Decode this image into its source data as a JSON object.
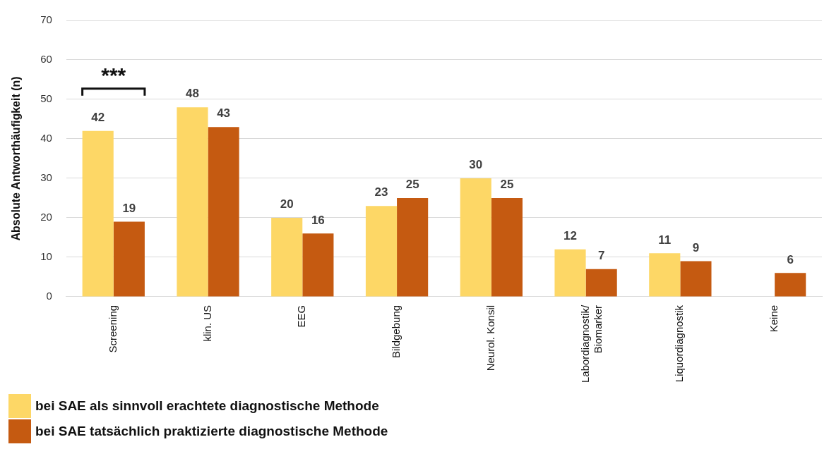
{
  "chart_data": {
    "type": "bar",
    "ylabel": "Absolute Antworthäufigkeit (n)",
    "categories": [
      "Screening",
      "klin. US",
      "EEG",
      "Bildgebung",
      "Neurol. Konsil",
      "Labordiagnostik/ Biomarker",
      "Liquordiagnostik",
      "Keine"
    ],
    "series": [
      {
        "name": "bei SAE als sinnvoll erachtete diagnostische Methode",
        "color": "#fdd766",
        "values": [
          42,
          48,
          20,
          23,
          30,
          12,
          11,
          null
        ]
      },
      {
        "name": "bei SAE tatsächlich praktizierte diagnostische Methode",
        "color": "#c55a11",
        "values": [
          19,
          43,
          16,
          25,
          25,
          7,
          9,
          6
        ]
      }
    ],
    "ylim": [
      0,
      70
    ],
    "yticks": [
      0,
      10,
      20,
      30,
      40,
      50,
      60,
      70
    ],
    "grid": "y",
    "legend": "bottom left",
    "data_labels": true,
    "annotations": [
      "***"
    ]
  }
}
